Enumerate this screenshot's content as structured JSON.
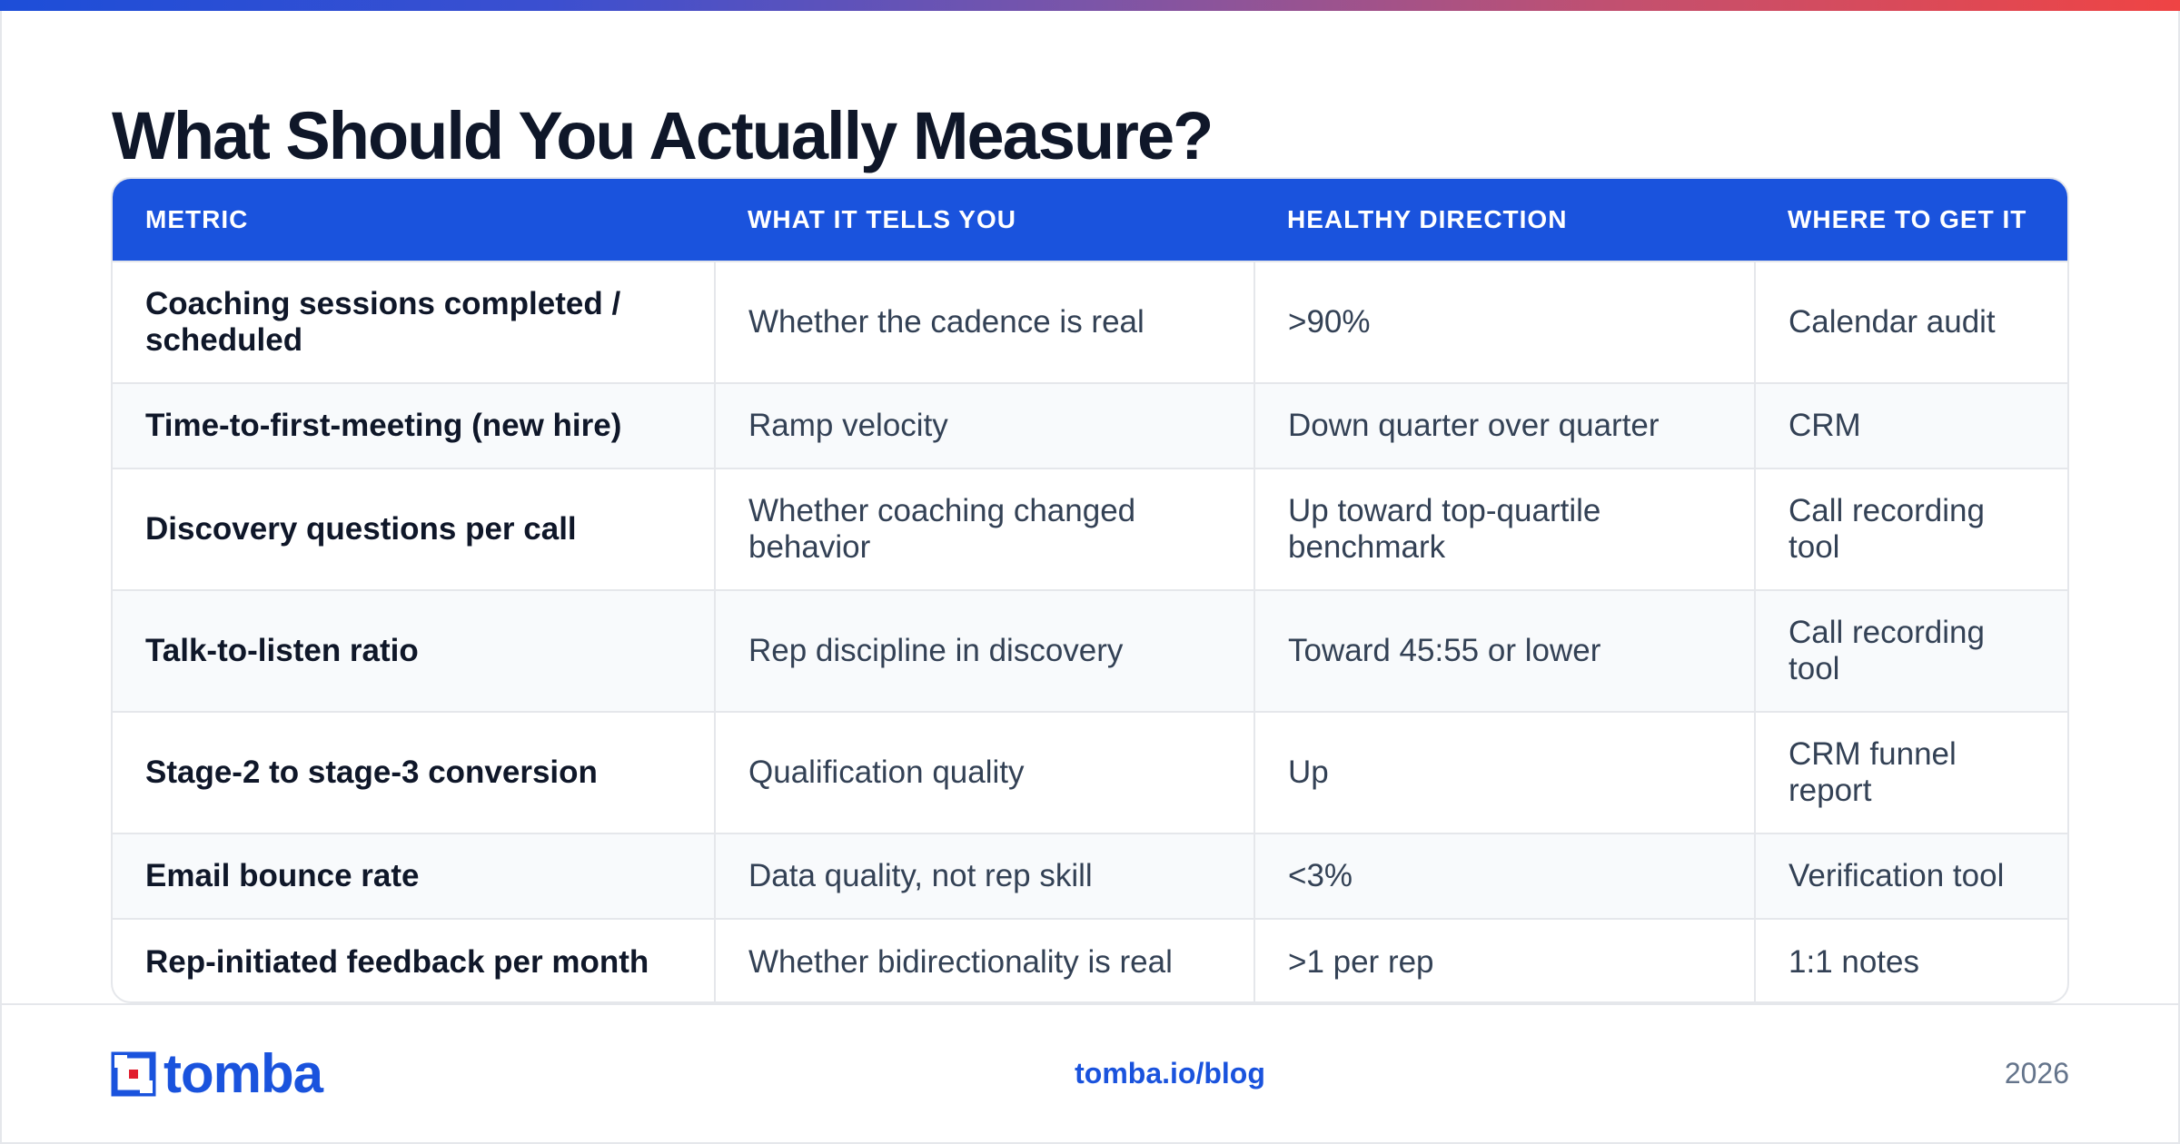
{
  "title": "What Should You Actually Measure?",
  "colors": {
    "accent": "#1a53dd",
    "header_text": "#ffffff",
    "row_alt": "#f8fafc",
    "border": "#e5e7eb"
  },
  "table": {
    "headers": [
      "METRIC",
      "WHAT IT TELLS YOU",
      "HEALTHY DIRECTION",
      "WHERE TO GET IT"
    ],
    "rows": [
      [
        "Coaching sessions completed / scheduled",
        "Whether the cadence is real",
        ">90%",
        "Calendar audit"
      ],
      [
        "Time-to-first-meeting (new hire)",
        "Ramp velocity",
        "Down quarter over quarter",
        "CRM"
      ],
      [
        "Discovery questions per call",
        "Whether coaching changed behavior",
        "Up toward top-quartile benchmark",
        "Call recording tool"
      ],
      [
        "Talk-to-listen ratio",
        "Rep discipline in discovery",
        "Toward 45:55 or lower",
        "Call recording tool"
      ],
      [
        "Stage-2 to stage-3 conversion",
        "Qualification quality",
        "Up",
        "CRM funnel report"
      ],
      [
        "Email bounce rate",
        "Data quality, not rep skill",
        "<3%",
        "Verification tool"
      ],
      [
        "Rep-initiated feedback per month",
        "Whether bidirectionality is real",
        ">1 per rep",
        "1:1 notes"
      ]
    ]
  },
  "footer": {
    "logo_text": "tomba",
    "logo_icon": "tomba-logo-icon",
    "link": "tomba.io/blog",
    "year": "2026"
  }
}
